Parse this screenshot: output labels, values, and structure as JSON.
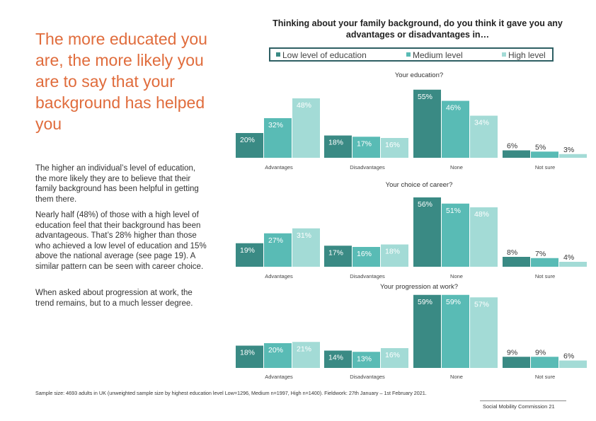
{
  "headline": "The more educated you are, the more likely you are to say that your background has helped you",
  "paragraphs": [
    "The higher an individual’s level of education, the more likely they are to believe that their family background has been helpful in getting them there.",
    "Nearly half (48%) of those with a high level of education feel that their background has been advantageous. That’s 28% higher than those who achieved a low level of education and 15% above the national average (see page 19). A similar pattern can be seen with career choice.",
    "When asked about progression at work, the trend remains, but to a much lesser degree."
  ],
  "chart_title": "Thinking about your family background, do you think it gave you any advantages or disadvantages in…",
  "legend": [
    {
      "label": "Low level of education",
      "color": "#3a8a84"
    },
    {
      "label": "Medium level",
      "color": "#59bbb5"
    },
    {
      "label": "High level",
      "color": "#a3dbd6"
    }
  ],
  "chart_data": [
    {
      "type": "bar",
      "title": "Your education?",
      "categories": [
        "Advantages",
        "Disadvantages",
        "None",
        "Not sure"
      ],
      "series": [
        {
          "name": "Low level of education",
          "values": [
            20,
            18,
            55,
            6
          ]
        },
        {
          "name": "Medium level",
          "values": [
            32,
            17,
            46,
            5
          ]
        },
        {
          "name": "High level",
          "values": [
            48,
            16,
            34,
            3
          ]
        }
      ],
      "value_labels": [
        [
          "20%",
          "32%",
          "48%"
        ],
        [
          "18%",
          "17%",
          "16%"
        ],
        [
          "55%",
          "46%",
          "34%"
        ],
        [
          "6%",
          "5%",
          "3%"
        ]
      ],
      "ylim": [
        0,
        60
      ]
    },
    {
      "type": "bar",
      "title": "Your choice of career?",
      "categories": [
        "Advantages",
        "Disadvantages",
        "None",
        "Not sure"
      ],
      "series": [
        {
          "name": "Low level of education",
          "values": [
            19,
            17,
            56,
            8
          ]
        },
        {
          "name": "Medium level",
          "values": [
            27,
            16,
            51,
            7
          ]
        },
        {
          "name": "High level",
          "values": [
            31,
            18,
            48,
            4
          ]
        }
      ],
      "value_labels": [
        [
          "19%",
          "27%",
          "31%"
        ],
        [
          "17%",
          "16%",
          "18%"
        ],
        [
          "56%",
          "51%",
          "48%"
        ],
        [
          "8%",
          "7%",
          "4%"
        ]
      ],
      "ylim": [
        0,
        60
      ]
    },
    {
      "type": "bar",
      "title": "Your progression at work?",
      "categories": [
        "Advantages",
        "Disadvantages",
        "None",
        "Not sure"
      ],
      "series": [
        {
          "name": "Low level of education",
          "values": [
            18,
            14,
            59,
            9
          ]
        },
        {
          "name": "Medium level",
          "values": [
            20,
            13,
            59,
            9
          ]
        },
        {
          "name": "High level",
          "values": [
            21,
            16,
            57,
            6
          ]
        }
      ],
      "value_labels": [
        [
          "18%",
          "20%",
          "21%"
        ],
        [
          "14%",
          "13%",
          "16%"
        ],
        [
          "59%",
          "59%",
          "57%"
        ],
        [
          "9%",
          "9%",
          "6%"
        ]
      ],
      "ylim": [
        0,
        60
      ]
    }
  ],
  "footnote": "Sample size: 4693 adults in UK (unweighted sample size by highest education level Low=1296, Medium n=1997, High n=1400). Fieldwork: 27th January – 1st February 2021.",
  "footer": "Social Mobility Commission 21"
}
